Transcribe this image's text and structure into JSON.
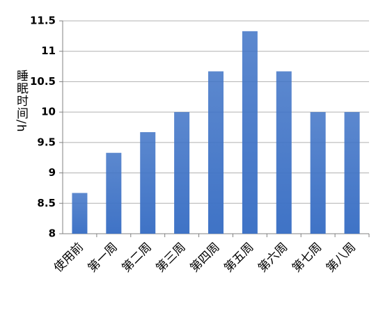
{
  "chart_data": {
    "type": "bar",
    "y_label": "睡眠时间/h",
    "categories": [
      "使用前",
      "第一周",
      "第二周",
      "第三周",
      "第四周",
      "第五周",
      "第六周",
      "第七周",
      "第八周"
    ],
    "values": [
      8.67,
      9.33,
      9.67,
      10,
      10.67,
      11.33,
      10.67,
      10,
      10
    ],
    "color": "#3f73c6",
    "ylim": [
      8,
      11.5
    ],
    "yticks": [
      8,
      8.5,
      9,
      9.5,
      10,
      10.5,
      11,
      11.5
    ],
    "grid": true
  }
}
